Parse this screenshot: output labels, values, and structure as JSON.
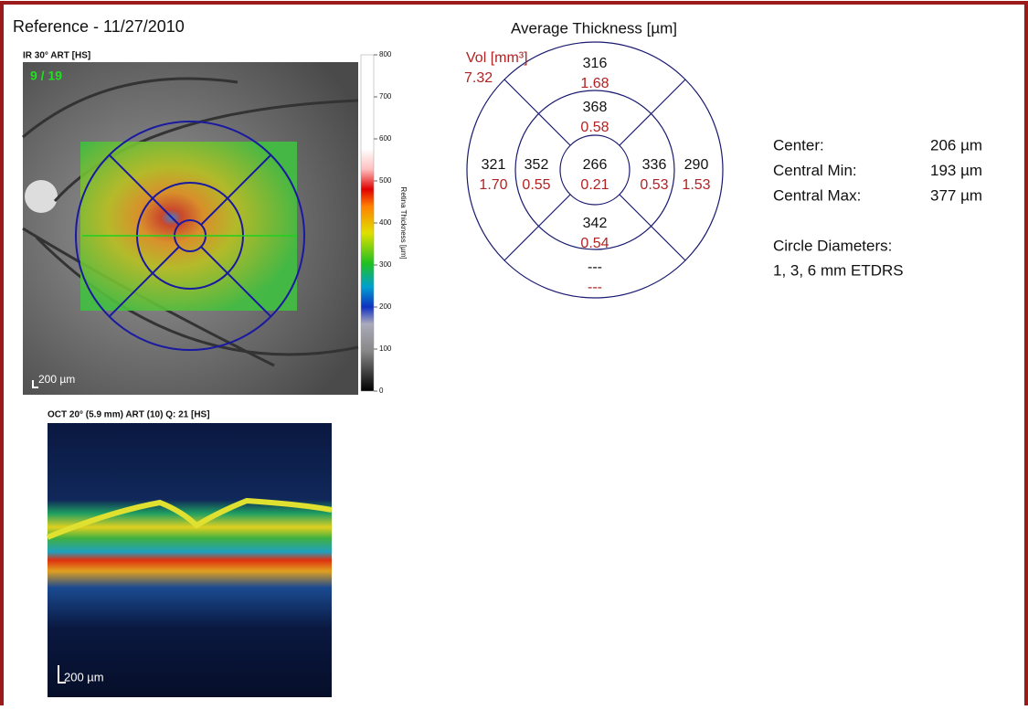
{
  "header": {
    "title": "Reference - 11/27/2010"
  },
  "fundus": {
    "label": "IR 30° ART [HS]",
    "frame": "9 / 19",
    "scale": "200 µm",
    "colorbar": {
      "title": "Retina Thickness [µm]",
      "range": [
        0,
        800
      ],
      "ticks": [
        800,
        700,
        600,
        500,
        400,
        300,
        200,
        100,
        0
      ]
    }
  },
  "oct": {
    "label": "OCT 20° (5.9 mm) ART (10) Q: 21 [HS]",
    "scale": "200 µm"
  },
  "map": {
    "title": "Average Thickness [µm]",
    "volume_label": "Vol [mm³]",
    "total_volume": "7.32",
    "sectors": [
      {
        "position": "outer-superior",
        "thickness": "316",
        "volume": "1.68"
      },
      {
        "position": "inner-superior",
        "thickness": "368",
        "volume": "0.58"
      },
      {
        "position": "center",
        "thickness": "266",
        "volume": "0.21"
      },
      {
        "position": "inner-inferior",
        "thickness": "342",
        "volume": "0.54"
      },
      {
        "position": "outer-inferior",
        "thickness": "---",
        "volume": "---"
      },
      {
        "position": "outer-left",
        "thickness": "321",
        "volume": "1.70"
      },
      {
        "position": "inner-left",
        "thickness": "352",
        "volume": "0.55"
      },
      {
        "position": "inner-right",
        "thickness": "336",
        "volume": "0.53"
      },
      {
        "position": "outer-right",
        "thickness": "290",
        "volume": "1.53"
      }
    ]
  },
  "stats": {
    "rows": [
      [
        "Center:",
        "206 µm"
      ],
      [
        "Central Min:",
        "193 µm"
      ],
      [
        "Central Max:",
        "377 µm"
      ]
    ],
    "diameters_label": "Circle Diameters:",
    "diameters": "1, 3, 6 mm ETDRS"
  }
}
